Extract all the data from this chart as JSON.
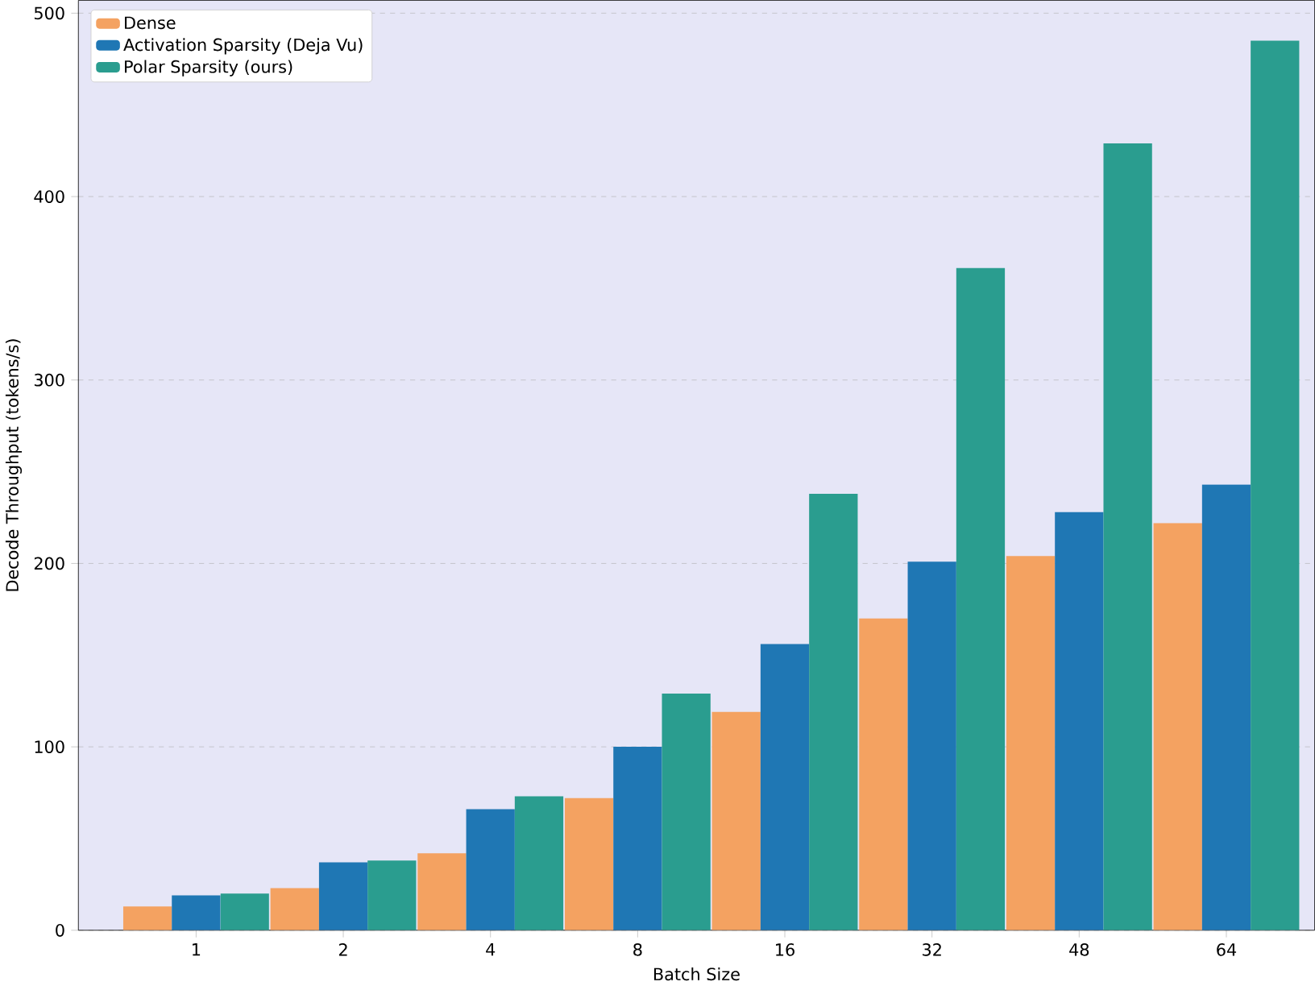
{
  "chart_data": {
    "type": "bar",
    "xlabel": "Batch Size",
    "ylabel": "Decode Throughput (tokens/s)",
    "categories": [
      "1",
      "2",
      "4",
      "8",
      "16",
      "32",
      "48",
      "64"
    ],
    "series": [
      {
        "name": "Dense",
        "color": "#f4a261",
        "values": [
          13,
          23,
          42,
          72,
          119,
          170,
          204,
          222
        ]
      },
      {
        "name": "Activation Sparsity (Deja Vu)",
        "color": "#1f77b4",
        "values": [
          19,
          37,
          66,
          100,
          156,
          201,
          228,
          243
        ]
      },
      {
        "name": "Polar Sparsity (ours)",
        "color": "#2a9d8f",
        "values": [
          20,
          38,
          73,
          129,
          238,
          361,
          429,
          485
        ]
      }
    ],
    "ylim": [
      0,
      507
    ],
    "yticks": [
      0,
      100,
      200,
      300,
      400,
      500
    ],
    "grid": "y",
    "legend": "top left"
  }
}
